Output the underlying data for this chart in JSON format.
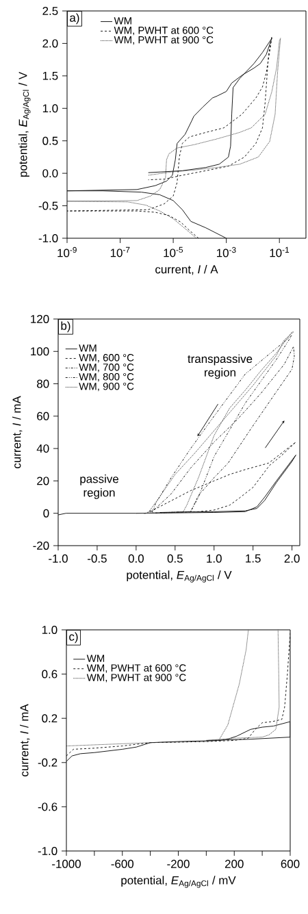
{
  "chart_data": [
    {
      "type": "line",
      "title": "a)",
      "xlabel": "current, *I* / A",
      "ylabel": "potential, *E*$_{Ag/AgCl}$ / V",
      "log": "x",
      "legend": "top",
      "xlim": [
        1e-09,
        1
      ],
      "ylim": [
        -1.0,
        2.5
      ],
      "xticks": [
        {
          "value": 1e-09,
          "label": "10$^{-9}$"
        },
        {
          "value": 1e-07,
          "label": "10$^{-7}$"
        },
        {
          "value": 1e-05,
          "label": "10$^{-5}$"
        },
        {
          "value": 0.001,
          "label": "10$^{-3}$"
        },
        {
          "value": 0.1,
          "label": "10$^{-1}$"
        }
      ],
      "yticks": [
        {
          "value": -1.0,
          "label": "-1.0"
        },
        {
          "value": -0.5,
          "label": "-0.5"
        },
        {
          "value": 0.0,
          "label": "0.0"
        },
        {
          "value": 0.5,
          "label": "0.5"
        },
        {
          "value": 1.0,
          "label": "1.0"
        },
        {
          "value": 1.5,
          "label": "1.5"
        },
        {
          "value": 2.0,
          "label": "2.0"
        },
        {
          "value": 2.5,
          "label": "2.5"
        }
      ],
      "series": [
        {
          "name": "WM",
          "color": "#1a1a1a",
          "line_style": "solid",
          "x": [
            0.001,
            0.00017,
            4.6e-05,
            2.2e-05,
            1e-05,
            3.1e-06,
            6.3e-07,
            2.2e-08,
            1e-09,
            4.3e-07,
            2.1e-06,
            5.6e-06,
            9.3e-06,
            1.2e-05,
            1.4e-05,
            2.8e-05,
            5e-05,
            6e-05,
            0.00013,
            0.0003,
            0.00045,
            0.001,
            0.0016,
            0.0039,
            0.011,
            0.019,
            0.032,
            0.052,
            0.023,
            0.011,
            0.0032,
            0.0018,
            0.0016,
            0.00145,
            0.0012,
            0.00054,
            0.00017,
            2.2e-05,
            1.15e-06
          ],
          "values": [
            -1.0,
            -0.84,
            -0.74,
            -0.56,
            -0.42,
            -0.33,
            -0.29,
            -0.27,
            -0.27,
            -0.25,
            -0.19,
            -0.12,
            -0.03,
            0.21,
            0.46,
            0.6,
            0.81,
            0.88,
            1.02,
            1.16,
            1.19,
            1.26,
            1.39,
            1.51,
            1.62,
            1.69,
            1.83,
            2.08,
            1.86,
            1.69,
            1.46,
            1.32,
            0.91,
            0.42,
            0.25,
            0.14,
            0.09,
            0.04,
            0.01
          ]
        },
        {
          "name": "WM, PWHT at 600 °C",
          "color": "#1a1a1a",
          "line_style": "dashed",
          "x": [
            9e-05,
            4.1e-05,
            1.9e-05,
            6.9e-06,
            2.1e-06,
            4.3e-07,
            1e-09,
            1.15e-06,
            4.6e-06,
            1e-05,
            1.4e-05,
            1.7e-05,
            2.2e-05,
            4.1e-05,
            0.00017,
            0.00081,
            0.0039,
            0.013,
            0.023,
            0.032,
            0.047,
            0.052,
            0.039,
            0.029,
            0.023,
            0.013,
            0.0048,
            0.0012,
            0.00017,
            2.2e-05,
            4.6e-06,
            1.15e-06
          ],
          "values": [
            -1.0,
            -0.88,
            -0.75,
            -0.65,
            -0.6,
            -0.58,
            -0.58,
            -0.56,
            -0.47,
            -0.35,
            -0.14,
            0.25,
            0.46,
            0.56,
            0.63,
            0.7,
            0.91,
            1.16,
            1.33,
            1.55,
            1.97,
            2.11,
            1.83,
            1.09,
            0.7,
            0.46,
            0.25,
            0.11,
            0.04,
            -0.03,
            -0.09,
            -0.1
          ]
        },
        {
          "name": "WM, PWHT at 900 °C",
          "color": "#333333",
          "line_style": "dotted",
          "x": [
            7.4e-05,
            3.4e-05,
            1e-05,
            3.1e-06,
            9.3e-07,
            1.9e-07,
            1e-09,
            4.3e-07,
            1.4e-06,
            3.1e-06,
            5.1e-06,
            5.6e-06,
            6.9e-06,
            1.4e-05,
            6e-05,
            0.00045,
            0.0032,
            0.0087,
            0.029,
            0.052,
            0.078,
            0.1,
            0.11,
            0.085,
            0.069,
            0.043,
            0.016,
            0.0032,
            0.00045,
            6e-05,
            8.3e-06,
            1.15e-06
          ],
          "values": [
            -1.0,
            -0.88,
            -0.7,
            -0.58,
            -0.49,
            -0.44,
            -0.43,
            -0.42,
            -0.35,
            -0.25,
            -0.07,
            0.21,
            0.3,
            0.39,
            0.44,
            0.53,
            0.63,
            0.7,
            0.91,
            1.26,
            1.62,
            2.04,
            2.08,
            1.55,
            0.91,
            0.49,
            0.25,
            0.14,
            0.09,
            0.05,
            0.02,
            -0.03
          ]
        }
      ]
    },
    {
      "type": "line",
      "title": "b)",
      "xlabel": "potential, *E*$_{Ag/AgCl}$ / V",
      "ylabel": "current, *I* / mA",
      "legend": "top left",
      "xlim": [
        -1.0,
        2.1
      ],
      "ylim": [
        -20,
        120
      ],
      "xticks": [
        {
          "value": -1.0,
          "label": "-1.0"
        },
        {
          "value": -0.5,
          "label": "-0.5"
        },
        {
          "value": 0.0,
          "label": "0.0"
        },
        {
          "value": 0.5,
          "label": "0.5"
        },
        {
          "value": 1.0,
          "label": "1.0"
        },
        {
          "value": 1.5,
          "label": "1.5"
        },
        {
          "value": 2.0,
          "label": "2.0"
        }
      ],
      "yticks": [
        -20,
        0,
        20,
        40,
        60,
        80,
        100,
        120
      ],
      "annotations": [
        "transpassive region",
        "passive region"
      ],
      "series": [
        {
          "name": "WM",
          "color": "#1a1a1a",
          "line_style": "solid",
          "x": [
            -1.0,
            -0.9,
            0.0,
            1.0,
            1.4,
            1.55,
            1.65,
            1.8,
            2.05,
            2.0,
            1.8,
            1.65,
            1.55,
            1.4,
            1.0,
            0.6,
            0.3
          ],
          "values": [
            -1,
            0,
            0,
            0.5,
            1,
            4,
            10,
            20,
            36,
            32,
            19,
            8,
            3,
            1.5,
            1,
            0.8,
            0.5
          ]
        },
        {
          "name": "WM, 600 °C",
          "color": "#1a1a1a",
          "line_style": "dashed",
          "x": [
            0.1,
            0.8,
            1.0,
            1.2,
            1.33,
            1.5,
            1.71,
            1.85,
            2.05,
            1.7,
            1.4,
            1.2,
            1.0,
            0.7,
            0.5,
            0.3,
            0.15
          ],
          "values": [
            0,
            1,
            2,
            5,
            9.6,
            16,
            29.5,
            35,
            44,
            31,
            27,
            24,
            20,
            14,
            9,
            4,
            0
          ]
        },
        {
          "name": "WM, 700 °C",
          "color": "#1a1a1a",
          "line_style": "dashdot",
          "x": [
            0.1,
            0.7,
            0.8,
            1.0,
            1.18,
            1.47,
            1.77,
            2.0,
            2.03,
            2.02,
            1.9,
            1.6,
            1.3,
            1.0,
            0.7,
            0.45,
            0.25,
            0.12
          ],
          "values": [
            0,
            1,
            11,
            22,
            31,
            52,
            73,
            89,
            97,
            103,
            92,
            74,
            58,
            44,
            28,
            12,
            3,
            0
          ]
        },
        {
          "name": "WM, 800 °C",
          "color": "#1a1a1a",
          "line_style": "dashdotdot",
          "x": [
            0.25,
            0.7,
            0.8,
            1.0,
            1.4,
            1.8,
            2.0,
            1.8,
            1.4,
            1.0,
            0.7,
            0.45,
            0.25,
            0.2
          ],
          "values": [
            0,
            1,
            10,
            35,
            68,
            95,
            110,
            102,
            86,
            60,
            40,
            22,
            6,
            0
          ]
        },
        {
          "name": "WM, 900 °C",
          "color": "#333333",
          "line_style": "dotted",
          "x": [
            0.0,
            0.6,
            0.65,
            0.8,
            1.0,
            1.2,
            1.4,
            1.6,
            1.8,
            2.0,
            2.02,
            1.9,
            1.8,
            1.5,
            1.0,
            0.75,
            0.5,
            0.3,
            0.15
          ],
          "values": [
            0,
            0.5,
            5,
            22,
            48,
            65,
            76,
            88,
            99,
            112,
            112,
            107,
            97.5,
            79,
            51,
            37,
            24,
            10,
            0
          ]
        }
      ]
    },
    {
      "type": "line",
      "title": "c)",
      "xlabel": "potential, *E*$_{Ag/AgCl}$ / mV",
      "ylabel": "current, *I* / mA",
      "legend": "top left",
      "xlim": [
        -1000,
        600
      ],
      "ylim": [
        -1.0,
        1.0
      ],
      "xticks": [
        -1000,
        {
          "value": -800,
          "label": null
        },
        -600,
        {
          "value": -400,
          "label": null
        },
        -200,
        {
          "value": 0,
          "label": null
        },
        200,
        {
          "value": 400,
          "label": null
        },
        600
      ],
      "yticks": [
        {
          "value": -1.0,
          "label": "-1.0"
        },
        {
          "value": -0.6,
          "label": "-0.6"
        },
        {
          "value": -0.2,
          "label": "-0.2"
        },
        {
          "value": 0.2,
          "label": "0.2"
        },
        {
          "value": 0.6,
          "label": "0.6"
        },
        {
          "value": 1.0,
          "label": "1.0"
        }
      ],
      "series": [
        {
          "name": "WM",
          "color": "#1a1a1a",
          "line_style": "solid",
          "x": [
            -1000,
            -960,
            -900,
            -800,
            -600,
            -500,
            -400,
            -200,
            100,
            150,
            220,
            317,
            400,
            480,
            600,
            600,
            300,
            0
          ],
          "values": [
            -0.19,
            -0.14,
            -0.12,
            -0.11,
            -0.08,
            -0.06,
            -0.02,
            -0.01,
            0.0,
            0.01,
            0.04,
            0.1,
            0.12,
            0.13,
            0.17,
            0.03,
            0.01,
            0.0
          ]
        },
        {
          "name": "WM, PWHT at 600 °C",
          "color": "#1a1a1a",
          "line_style": "dashed",
          "x": [
            -1000,
            -950,
            -800,
            -600,
            -400,
            0,
            200,
            300,
            350,
            400,
            470,
            540,
            560,
            580,
            600
          ],
          "values": [
            -0.14,
            -0.08,
            -0.07,
            -0.05,
            -0.02,
            -0.01,
            0.0,
            0.02,
            0.1,
            0.16,
            0.17,
            0.19,
            0.3,
            0.6,
            0.97
          ]
        },
        {
          "name": "WM, PWHT at 900 °C",
          "color": "#333333",
          "line_style": "dotted",
          "x": [
            -1000,
            -800,
            -400,
            0,
            89,
            154,
            236,
            285,
            301,
            400,
            513,
            518,
            521,
            497,
            448,
            400,
            200,
            0
          ],
          "values": [
            -0.05,
            -0.04,
            -0.02,
            -0.01,
            0.0,
            0.14,
            0.51,
            0.82,
            1.0,
            null,
            1.0,
            0.6,
            0.3,
            0.1,
            0.05,
            0.03,
            0.02,
            0.0
          ]
        }
      ]
    }
  ]
}
